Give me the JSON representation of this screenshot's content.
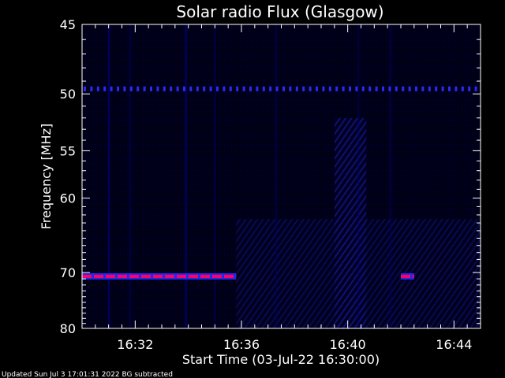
{
  "chart_data": {
    "type": "heatmap",
    "title": "Solar radio Flux (Glasgow)",
    "xlabel": "Start Time (03-Jul-22 16:30:00)",
    "ylabel": "Frequency [MHz]",
    "x_unit": "minutes after 16:30",
    "xlim": [
      0,
      15
    ],
    "ylim": [
      80,
      45
    ],
    "x_ticks": [
      {
        "value": 2,
        "label": "16:32"
      },
      {
        "value": 6,
        "label": "16:36"
      },
      {
        "value": 10,
        "label": "16:40"
      },
      {
        "value": 14,
        "label": "16:44"
      }
    ],
    "y_ticks": [
      {
        "value": 45,
        "label": "45"
      },
      {
        "value": 50,
        "label": "50"
      },
      {
        "value": 55,
        "label": "55"
      },
      {
        "value": 60,
        "label": "60"
      },
      {
        "value": 70,
        "label": "70"
      },
      {
        "value": 80,
        "label": "80"
      }
    ],
    "background_subtracted": true,
    "colors": {
      "background": "#000000",
      "low": "#00006e",
      "mid": "#2a2aff",
      "high": "#ff0066"
    },
    "features": [
      {
        "kind": "horizontal_band",
        "freq_mhz": 49.6,
        "t_start": 0.0,
        "t_end": 15.0,
        "intensity": "medium"
      },
      {
        "kind": "horizontal_band",
        "freq_mhz": 70.6,
        "t_start": 0.0,
        "t_end": 5.8,
        "intensity": "high"
      },
      {
        "kind": "horizontal_band",
        "freq_mhz": 70.6,
        "t_start": 12.0,
        "t_end": 12.5,
        "intensity": "high"
      },
      {
        "kind": "vertical_streak",
        "t": 1.0,
        "intensity": "medium"
      },
      {
        "kind": "vertical_streak",
        "t": 1.8,
        "intensity": "low"
      },
      {
        "kind": "vertical_streak",
        "t": 3.9,
        "intensity": "medium"
      },
      {
        "kind": "vertical_streak",
        "t": 5.0,
        "intensity": "low"
      },
      {
        "kind": "vertical_streak",
        "t": 7.3,
        "intensity": "low"
      },
      {
        "kind": "vertical_streak",
        "t": 10.4,
        "intensity": "low"
      },
      {
        "kind": "vertical_streak",
        "t": 11.6,
        "intensity": "low"
      },
      {
        "kind": "diffuse_region",
        "t_start": 5.8,
        "t_end": 15.0,
        "f_start": 62.5,
        "f_end": 80.0,
        "intensity": "low"
      },
      {
        "kind": "diffuse_region",
        "t_start": 9.5,
        "t_end": 10.7,
        "f_start": 52.0,
        "f_end": 80.0,
        "intensity": "medium"
      }
    ]
  },
  "footer": "Updated Sun Jul  3 17:01:31 2022   BG subtracted"
}
